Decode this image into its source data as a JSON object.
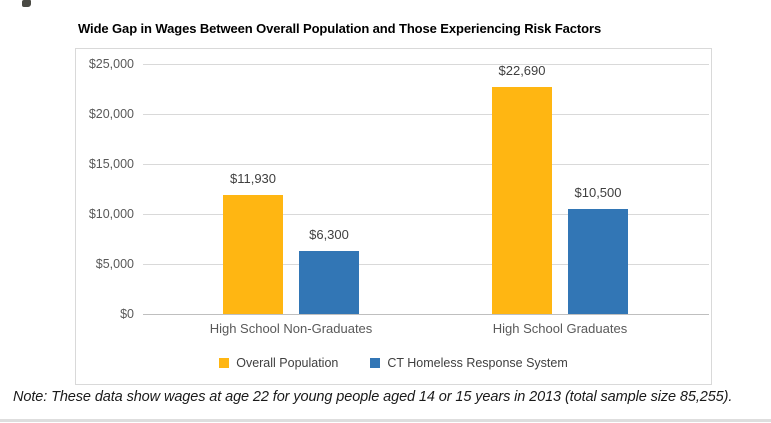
{
  "page": {
    "note": "Note: These data show wages at age 22 for young people aged 14 or 15 years in 2013 (total sample size 85,255)."
  },
  "chart_data": {
    "type": "bar",
    "title": "Wide Gap in Wages Between Overall Population and Those Experiencing Risk Factors",
    "categories": [
      "High School Non-Graduates",
      "High School Graduates"
    ],
    "series": [
      {
        "name": "Overall Population",
        "color": "#FFB612",
        "values": [
          11930,
          22690
        ],
        "data_labels": [
          "$11,930",
          "$22,690"
        ]
      },
      {
        "name": "CT Homeless Response System",
        "color": "#3276B5",
        "values": [
          6300,
          10500
        ],
        "data_labels": [
          "$6,300",
          "$10,500"
        ]
      }
    ],
    "y_axis": {
      "min": 0,
      "max": 25000,
      "tick_step": 5000,
      "tick_labels_top_to_bottom": [
        "$25,000",
        "$20,000",
        "$15,000",
        "$10,000",
        "$5,000",
        "$0"
      ]
    },
    "grid": true,
    "legend_position": "bottom",
    "colors": {
      "gridline": "#d9d9d9",
      "zero_line": "#bfbfbf",
      "axis_text": "#595959",
      "data_label_text": "#3f3f3f",
      "title_text": "#000000"
    },
    "note": "Note: These data show wages at age 22 for young people aged 14 or 15 years in 2013 (total sample size 85,255)."
  }
}
